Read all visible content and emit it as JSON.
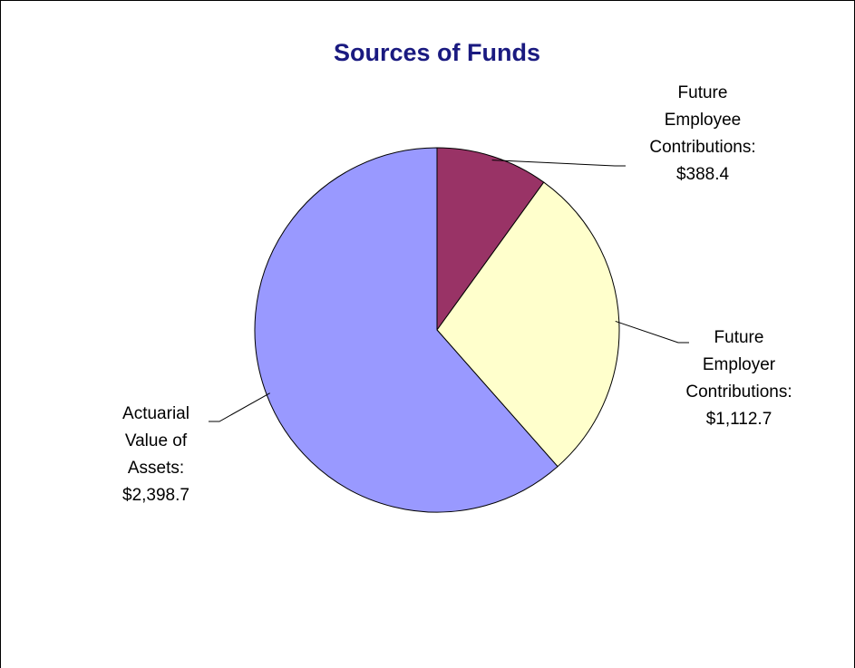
{
  "chart_data": {
    "type": "pie",
    "title": "Sources of Funds",
    "categories": [
      "Future Employee Contributions:",
      "Future Employer Contributions:",
      "Actuarial Value of Assets:"
    ],
    "values": [
      388.4,
      1112.7,
      2398.7
    ],
    "value_labels": [
      "$388.4",
      "$1,112.7",
      "$2,398.7"
    ],
    "colors": [
      "#993366",
      "#ffffcc",
      "#9999ff"
    ]
  }
}
